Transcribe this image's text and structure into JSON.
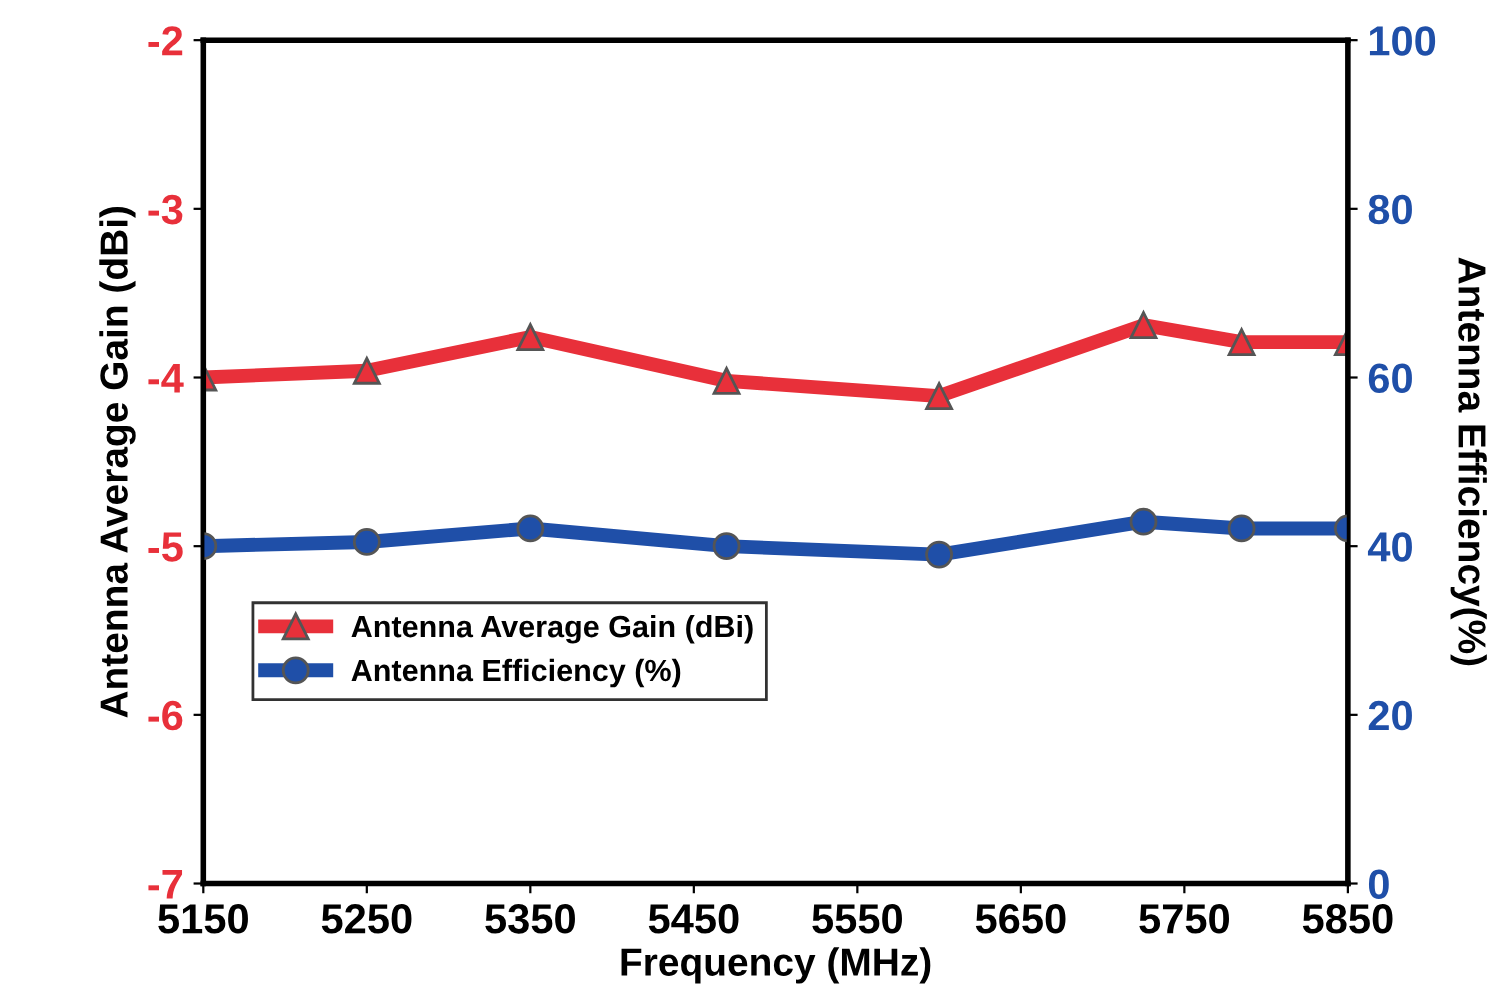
{
  "chart_data": {
    "type": "line",
    "xlabel": "Frequency (MHz)",
    "ylabel": "Antenna Average Gain (dBi)",
    "y2label": "Antenna Efficiency(%)",
    "x": [
      5150,
      5250,
      5350,
      5470,
      5600,
      5725,
      5785,
      5850
    ],
    "series": [
      {
        "name": "Antenna Average Gain (dBi)",
        "color": "#e8303a",
        "marker": "triangle",
        "values": [
          -4.0,
          -3.96,
          -3.76,
          -4.02,
          -4.11,
          -3.69,
          -3.79,
          -3.79
        ]
      },
      {
        "name": "Antenna Efficiency (%)",
        "color": "#1f4fa8",
        "marker": "circle",
        "axis": "y2",
        "values": [
          40.0,
          40.5,
          42.1,
          40.0,
          39.0,
          42.9,
          42.1,
          42.1
        ]
      }
    ],
    "xlim": [
      5150,
      5850
    ],
    "xticks": [
      5150,
      5250,
      5350,
      5450,
      5550,
      5650,
      5750,
      5850
    ],
    "ylim": [
      -7,
      -2
    ],
    "yticks": [
      -7,
      -6,
      -5,
      -4,
      -3,
      -2
    ],
    "y2lim": [
      0,
      100
    ],
    "y2ticks": [
      0,
      20,
      40,
      60,
      80,
      100
    ],
    "grid": false,
    "legend": "bottom left",
    "line_style": "solid"
  }
}
